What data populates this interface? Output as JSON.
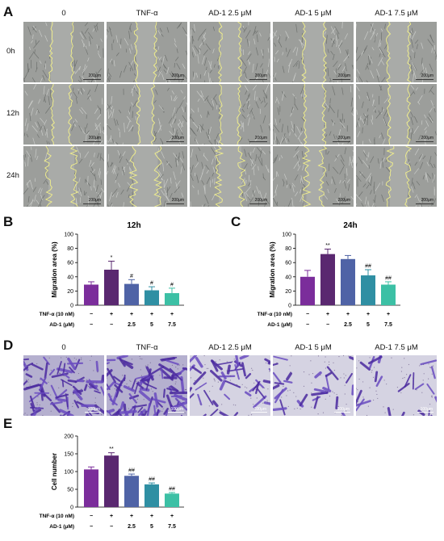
{
  "panel_letters": {
    "a": "A",
    "b": "B",
    "c": "C",
    "d": "D",
    "e": "E"
  },
  "wound_panel": {
    "columns": [
      "0",
      "TNF-α",
      "AD-1 2.5 μM",
      "AD-1 5 μM",
      "AD-1 7.5 μM"
    ],
    "rows": [
      "0h",
      "12h",
      "24h"
    ],
    "scale_label": "200μm"
  },
  "transwell_panel": {
    "columns": [
      "0",
      "TNF-α",
      "AD-1 2.5 μM",
      "AD-1 5 μM",
      "AD-1 7.5 μM"
    ],
    "scale_label": "100μm"
  },
  "treatment_rows": {
    "tnf_label": "TNF-α (10 nM)",
    "ad1_label": "AD-1 (μM)",
    "tnf_marks": [
      "−",
      "+",
      "+",
      "+",
      "+"
    ],
    "ad1_marks": [
      "−",
      "−",
      "2.5",
      "5",
      "7.5"
    ]
  },
  "bar_colors": [
    "#7b2d9b",
    "#5a2870",
    "#4f63a6",
    "#2f8fa3",
    "#3cc0a5"
  ],
  "chart_data": [
    {
      "type": "bar",
      "title": "12h",
      "ylabel": "Migration area (%)",
      "ylim": [
        0,
        100
      ],
      "yticks": [
        0,
        20,
        40,
        60,
        80,
        100
      ],
      "values": [
        29,
        50,
        30,
        21,
        17
      ],
      "errors": [
        4,
        12,
        6,
        5,
        7
      ],
      "annotations": [
        "",
        "*",
        "#",
        "#",
        "#"
      ]
    },
    {
      "type": "bar",
      "title": "24h",
      "ylabel": "Migration area (%)",
      "ylim": [
        0,
        100
      ],
      "yticks": [
        0,
        20,
        40,
        60,
        80,
        100
      ],
      "values": [
        40,
        72,
        65,
        42,
        29
      ],
      "errors": [
        9,
        7,
        5,
        8,
        4
      ],
      "annotations": [
        "",
        "**",
        "",
        "##",
        "##"
      ]
    },
    {
      "type": "bar",
      "title": "",
      "ylabel": "Cell number",
      "ylim": [
        0,
        200
      ],
      "yticks": [
        0,
        50,
        100,
        150,
        200
      ],
      "values": [
        106,
        145,
        88,
        64,
        38
      ],
      "errors": [
        7,
        8,
        5,
        4,
        3
      ],
      "annotations": [
        "",
        "**",
        "##",
        "##",
        "##"
      ]
    }
  ]
}
